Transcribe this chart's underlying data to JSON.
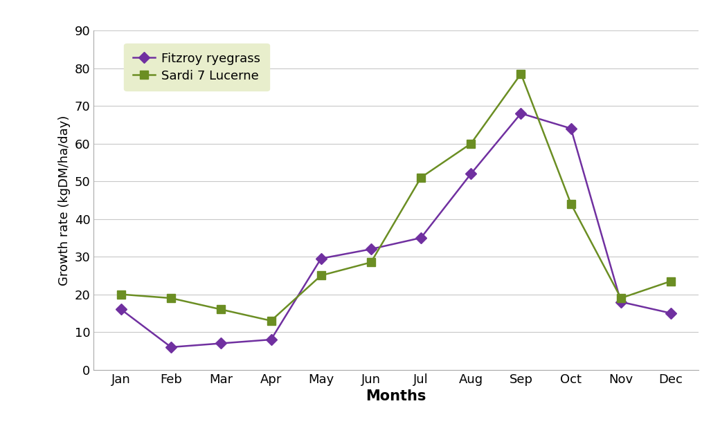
{
  "months": [
    "Jan",
    "Feb",
    "Mar",
    "Apr",
    "May",
    "Jun",
    "Jul",
    "Aug",
    "Sep",
    "Oct",
    "Nov",
    "Dec"
  ],
  "fitzroy_ryegrass": [
    16,
    6,
    7,
    8,
    29.5,
    32,
    35,
    52,
    68,
    64,
    18,
    15
  ],
  "sardi7_lucerne": [
    20,
    19,
    16,
    13,
    25,
    28.5,
    51,
    60,
    78.5,
    44,
    19,
    23.5
  ],
  "fitzroy_color": "#7030A0",
  "sardi7_color": "#6B8E23",
  "fitzroy_marker": "D",
  "sardi7_marker": "s",
  "xlabel": "Months",
  "ylabel": "Growth rate (kgDM/ha/day)",
  "ylim": [
    0,
    90
  ],
  "yticks": [
    0,
    10,
    20,
    30,
    40,
    50,
    60,
    70,
    80,
    90
  ],
  "legend_labels": [
    "Fitzroy ryegrass",
    "Sardi 7 Lucerne"
  ],
  "legend_bg_color": "#e8eecc",
  "background_color": "#ffffff",
  "grid_color": "#c8c8c8",
  "xlabel_fontsize": 15,
  "ylabel_fontsize": 13,
  "tick_fontsize": 13,
  "legend_fontsize": 13,
  "marker_size": 8,
  "line_width": 1.8
}
